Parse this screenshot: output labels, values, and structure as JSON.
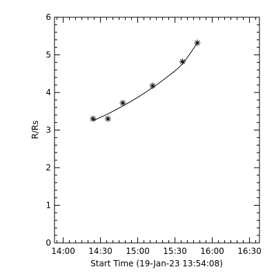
{
  "chart_data": {
    "type": "scatter",
    "title": "",
    "xlabel": "Start Time (19-Jan-23 13:54:08)",
    "ylabel": "R/Rs",
    "x_tick_labels": [
      "14:00",
      "14:30",
      "15:00",
      "15:30",
      "16:00",
      "16:30"
    ],
    "x_tick_minutes": [
      0,
      30,
      60,
      90,
      120,
      150
    ],
    "xlim_minutes_after_14_00": [
      -7,
      158
    ],
    "y_tick_labels": [
      "0",
      "1",
      "2",
      "3",
      "4",
      "5",
      "6"
    ],
    "ylim": [
      0,
      6
    ],
    "series": [
      {
        "marker": "asterisk",
        "points": [
          {
            "time": "14:24",
            "r": 3.3
          },
          {
            "time": "14:36",
            "r": 3.3
          },
          {
            "time": "14:48",
            "r": 3.72
          },
          {
            "time": "15:12",
            "r": 4.18
          },
          {
            "time": "15:36",
            "r": 4.82
          },
          {
            "time": "15:48",
            "r": 5.32
          }
        ]
      }
    ],
    "fit_curve": {
      "points": [
        {
          "time": "14:24",
          "r": 3.25
        },
        {
          "time": "14:36",
          "r": 3.43
        },
        {
          "time": "14:48",
          "r": 3.64
        },
        {
          "time": "15:00",
          "r": 3.87
        },
        {
          "time": "15:12",
          "r": 4.13
        },
        {
          "time": "15:24",
          "r": 4.42
        },
        {
          "time": "15:36",
          "r": 4.76
        },
        {
          "time": "15:48",
          "r": 5.32
        }
      ]
    },
    "grid": false,
    "legend": "none",
    "colors": {
      "axes": "#000000",
      "data": "#000000",
      "background": "#ffffff"
    }
  }
}
